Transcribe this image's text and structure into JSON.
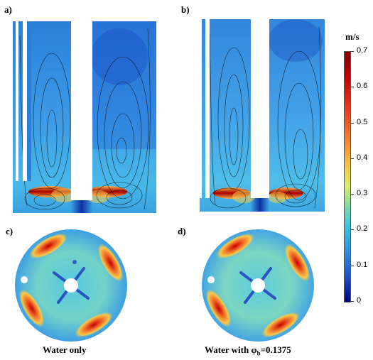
{
  "panels": {
    "a": {
      "label": "a)"
    },
    "b": {
      "label": "b)"
    },
    "c": {
      "label": "c)"
    },
    "d": {
      "label": "d)"
    }
  },
  "captions": {
    "left": "Water only",
    "right_prefix": "Water with φ",
    "right_sub": "b",
    "right_suffix": "=0.1375"
  },
  "colorbar": {
    "title": "m/s",
    "min": 0,
    "max": 0.7,
    "ticks": [
      "0.7",
      "0.6",
      "0.5",
      "0.4",
      "0.3",
      "0.2",
      "0.1",
      "0"
    ],
    "colors": [
      "#7f0000",
      "#d7191c",
      "#f46d43",
      "#fdae61",
      "#fee08b",
      "#e6f598",
      "#66c2a5",
      "#29b6d8",
      "#1f78d4",
      "#0b3fb0",
      "#00007f"
    ]
  }
}
